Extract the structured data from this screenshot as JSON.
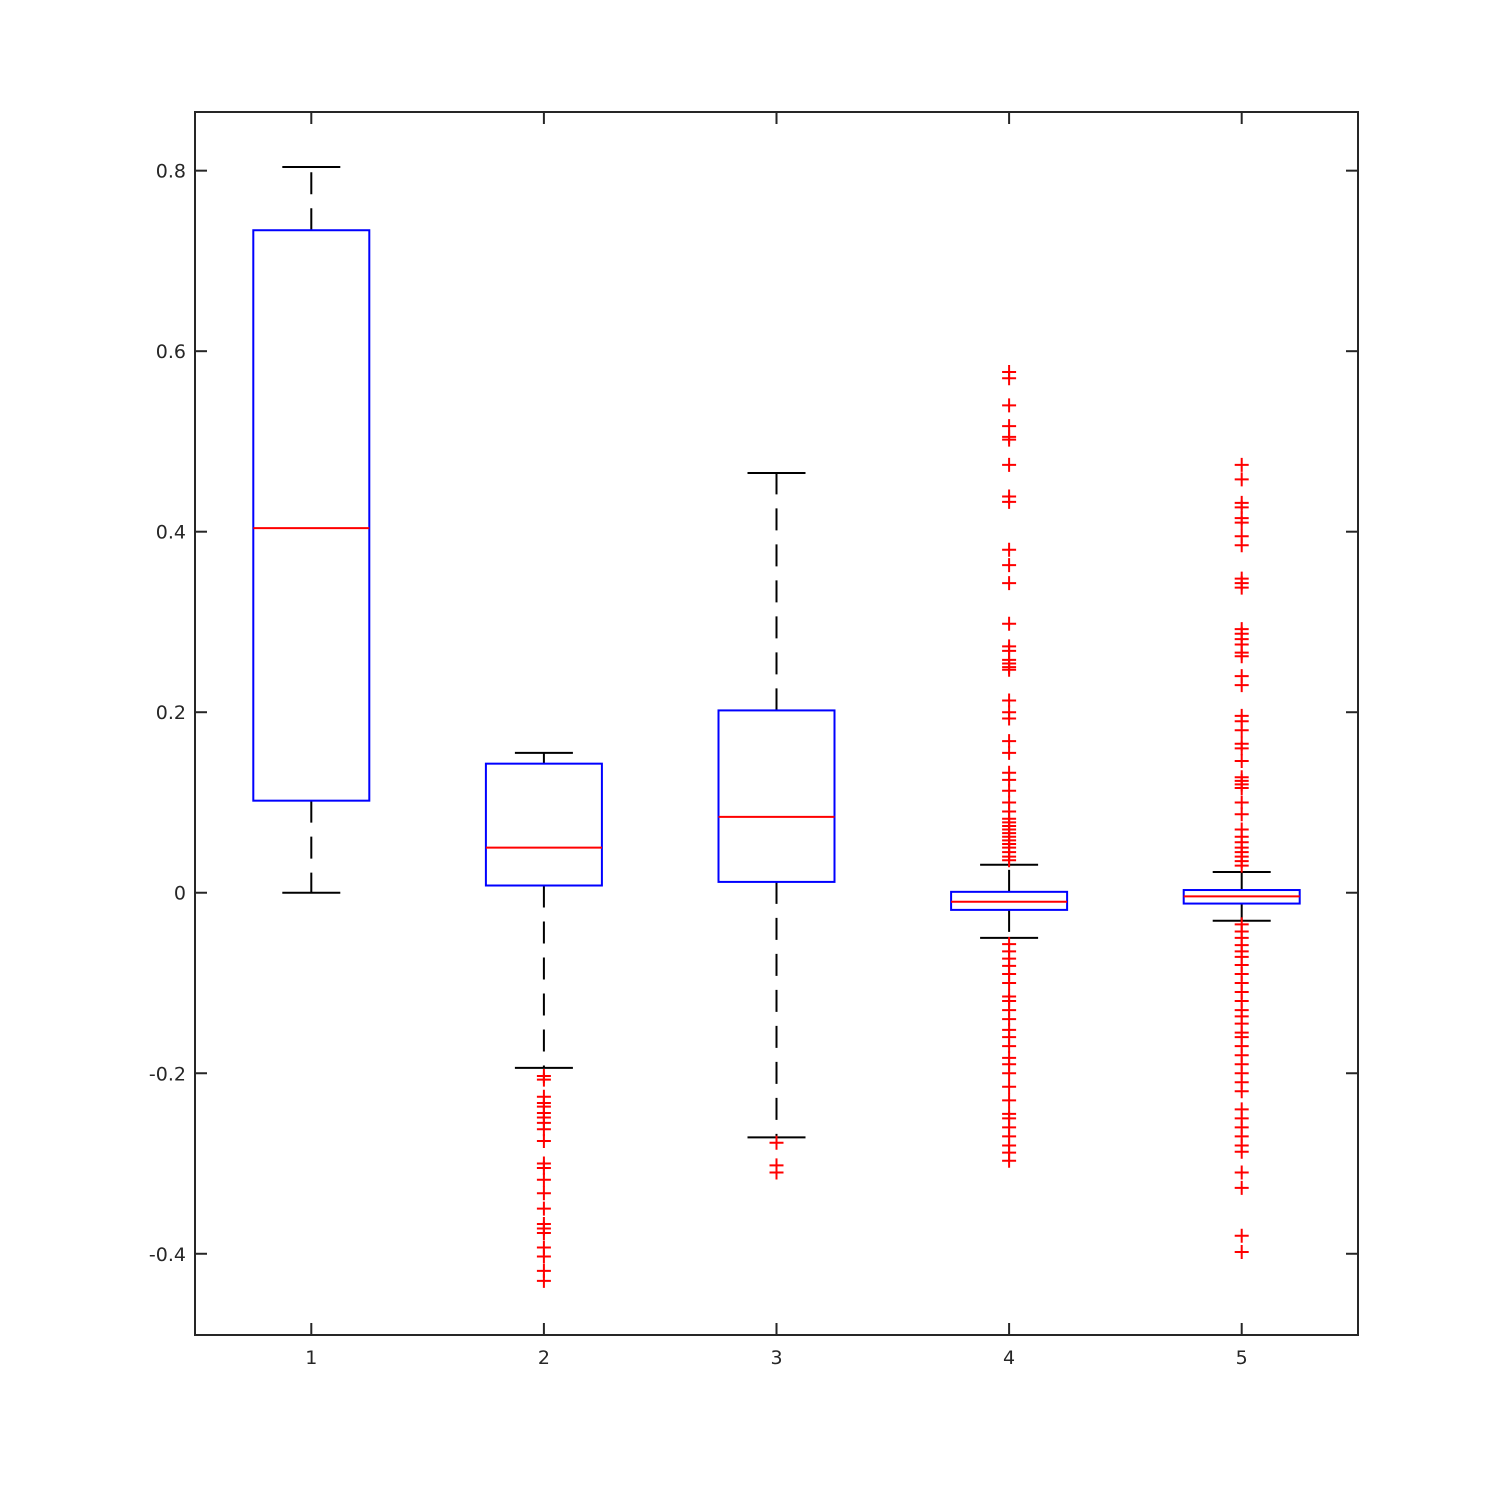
{
  "chart_data": {
    "type": "box",
    "title": "",
    "xlabel": "",
    "ylabel": "",
    "ylim": [
      -0.49,
      0.865
    ],
    "xlim": [
      0.5,
      5.5
    ],
    "grid": false,
    "x_ticks": [
      "1",
      "2",
      "3",
      "4",
      "5"
    ],
    "y_ticks": [
      {
        "value": 0.8,
        "label": "0.8"
      },
      {
        "value": 0.6,
        "label": "0.6"
      },
      {
        "value": 0.4,
        "label": "0.4"
      },
      {
        "value": 0.2,
        "label": "0.2"
      },
      {
        "value": 0,
        "label": "0"
      },
      {
        "value": -0.2,
        "label": "-0.2"
      },
      {
        "value": -0.4,
        "label": "-0.4"
      }
    ],
    "colors": {
      "box": "#0000ff",
      "median": "#ff0000",
      "whisker": "#000000",
      "outlier": "#ff0000",
      "axes": "#262626"
    },
    "boxes": [
      {
        "category": "1",
        "whisker_low": 0.0,
        "q1": 0.102,
        "median": 0.404,
        "q3": 0.734,
        "whisker_high": 0.804,
        "outliers": []
      },
      {
        "category": "2",
        "whisker_low": -0.194,
        "q1": 0.008,
        "median": 0.05,
        "q3": 0.143,
        "whisker_high": 0.155,
        "outliers": [
          -0.203,
          -0.207,
          -0.226,
          -0.233,
          -0.237,
          -0.244,
          -0.249,
          -0.255,
          -0.262,
          -0.275,
          -0.3,
          -0.305,
          -0.318,
          -0.333,
          -0.35,
          -0.367,
          -0.372,
          -0.377,
          -0.393,
          -0.403,
          -0.419,
          -0.43
        ]
      },
      {
        "category": "3",
        "whisker_low": -0.271,
        "q1": 0.012,
        "median": 0.084,
        "q3": 0.202,
        "whisker_high": 0.465,
        "outliers": [
          -0.277,
          -0.302,
          -0.31
        ]
      },
      {
        "category": "4",
        "whisker_low": -0.05,
        "q1": -0.019,
        "median": -0.01,
        "q3": 0.001,
        "whisker_high": 0.031,
        "outliers": [
          0.577,
          0.57,
          0.54,
          0.517,
          0.505,
          0.502,
          0.474,
          0.439,
          0.433,
          0.38,
          0.363,
          0.343,
          0.298,
          0.273,
          0.268,
          0.258,
          0.254,
          0.25,
          0.247,
          0.213,
          0.2,
          0.193,
          0.168,
          0.155,
          0.133,
          0.125,
          0.113,
          0.1,
          0.09,
          0.082,
          0.078,
          0.074,
          0.07,
          0.066,
          0.062,
          0.058,
          0.054,
          0.05,
          0.045,
          0.04,
          0.036,
          -0.057,
          -0.065,
          -0.073,
          -0.081,
          -0.09,
          -0.1,
          -0.115,
          -0.12,
          -0.13,
          -0.14,
          -0.152,
          -0.16,
          -0.17,
          -0.183,
          -0.19,
          -0.2,
          -0.215,
          -0.23,
          -0.245,
          -0.25,
          -0.26,
          -0.27,
          -0.28,
          -0.288,
          -0.297
        ]
      },
      {
        "category": "5",
        "whisker_low": -0.031,
        "q1": -0.012,
        "median": -0.004,
        "q3": 0.003,
        "whisker_high": 0.023,
        "outliers": [
          0.474,
          0.458,
          0.432,
          0.427,
          0.415,
          0.41,
          0.395,
          0.385,
          0.348,
          0.343,
          0.338,
          0.292,
          0.287,
          0.281,
          0.275,
          0.266,
          0.262,
          0.24,
          0.23,
          0.196,
          0.19,
          0.18,
          0.165,
          0.16,
          0.146,
          0.128,
          0.124,
          0.12,
          0.116,
          0.1,
          0.087,
          0.07,
          0.062,
          0.056,
          0.05,
          0.045,
          0.04,
          0.035,
          0.03,
          -0.035,
          -0.043,
          -0.05,
          -0.058,
          -0.065,
          -0.071,
          -0.08,
          -0.09,
          -0.1,
          -0.11,
          -0.12,
          -0.13,
          -0.137,
          -0.145,
          -0.155,
          -0.16,
          -0.17,
          -0.18,
          -0.19,
          -0.2,
          -0.21,
          -0.22,
          -0.24,
          -0.25,
          -0.26,
          -0.27,
          -0.28,
          -0.287,
          -0.31,
          -0.327,
          -0.38,
          -0.398
        ]
      }
    ]
  }
}
